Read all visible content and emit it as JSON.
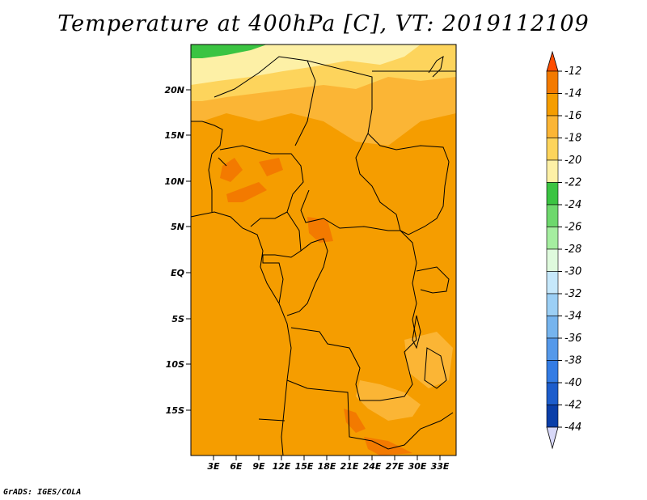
{
  "title": "Temperature at 400hPa [C], VT: 2019112109",
  "credit": "GrADS: IGES/COLA",
  "lat_labels": [
    "20N",
    "15N",
    "10N",
    "5N",
    "EQ",
    "5S",
    "10S",
    "15S"
  ],
  "lon_labels": [
    "3E",
    "6E",
    "9E",
    "12E",
    "15E",
    "18E",
    "21E",
    "24E",
    "27E",
    "30E",
    "33E"
  ],
  "colorbar": {
    "labels": [
      "-12",
      "-14",
      "-16",
      "-18",
      "-20",
      "-22",
      "-24",
      "-26",
      "-28",
      "-30",
      "-32",
      "-34",
      "-36",
      "-38",
      "-40",
      "-42",
      "-44"
    ],
    "colors": [
      "#ff4d00",
      "#f37a00",
      "#f59d00",
      "#fbb535",
      "#fdd45c",
      "#fdf0a6",
      "#3bc442",
      "#6ed86d",
      "#a5eea0",
      "#dffadd",
      "#c6e8fb",
      "#9ccff5",
      "#76b4ee",
      "#5599ea",
      "#347ce4",
      "#1d5dcc",
      "#0a3ea8",
      "#0b1670",
      "#d8d8f8"
    ],
    "cbar_labels_note": "tick labels from top to bottom"
  },
  "chart_data": {
    "type": "heatmap",
    "title": "Temperature at 400hPa [C], VT: 2019112109",
    "variable": "Temperature",
    "level": "400hPa",
    "units": "C",
    "valid_time": "2019112109",
    "lon_range": [
      0,
      35
    ],
    "lat_range": [
      -20,
      24
    ],
    "color_levels": [
      -44,
      -42,
      -40,
      -38,
      -36,
      -34,
      -32,
      -30,
      -28,
      -26,
      -24,
      -22,
      -20,
      -18,
      -16,
      -14,
      -12
    ],
    "dominant_value_range": [
      -16,
      -14
    ],
    "regions": [
      {
        "name": "north-cold-patch",
        "value_range": [
          -24,
          -22
        ]
      },
      {
        "name": "north-sahel-band",
        "value_range": [
          -20,
          -16
        ]
      },
      {
        "name": "central-africa",
        "value_range": [
          -16,
          -14
        ]
      },
      {
        "name": "nigeria-warm-spots",
        "value_range": [
          -14,
          -12
        ]
      },
      {
        "name": "zambia-zimbabwe-warm",
        "value_range": [
          -14,
          -12
        ]
      }
    ]
  }
}
